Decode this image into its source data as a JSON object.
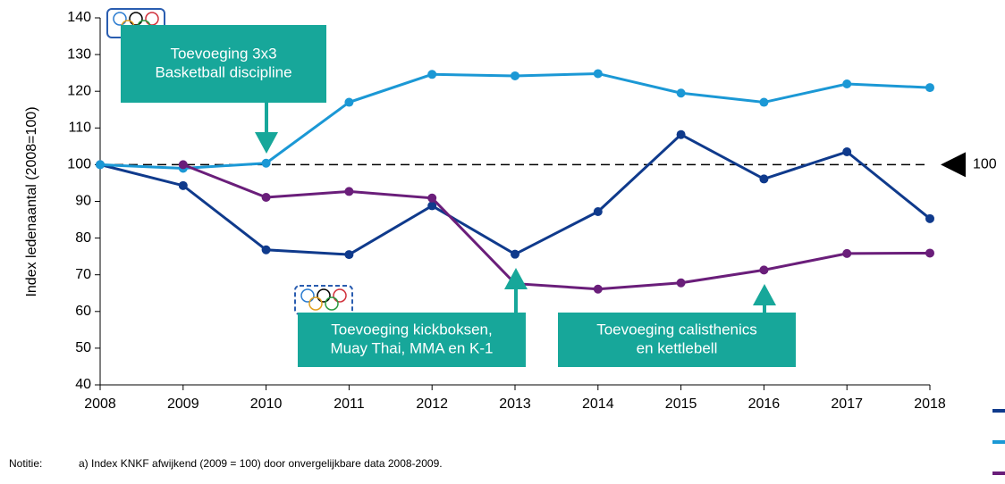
{
  "chart_data": {
    "type": "line",
    "y_axis_label": "Index ledenaantal (2008=100)",
    "categories": [
      "2008",
      "2009",
      "2010",
      "2011",
      "2012",
      "2013",
      "2014",
      "2015",
      "2016",
      "2017",
      "2018"
    ],
    "series": [
      {
        "color": "#0f3a8c",
        "values": [
          100,
          94.3,
          76.8,
          75.5,
          88.8,
          75.6,
          87.2,
          108.2,
          96.1,
          103.5,
          85.3
        ]
      },
      {
        "color": "#1b98d5",
        "values": [
          100,
          99,
          100.4,
          117,
          124.6,
          124.2,
          124.8,
          119.5,
          117,
          122,
          121
        ]
      },
      {
        "color": "#6a1e7a",
        "values": [
          null,
          100,
          91.1,
          92.7,
          90.9,
          67.6,
          66.1,
          67.8,
          71.3,
          75.8,
          75.9
        ]
      }
    ],
    "ylim": [
      40,
      140
    ],
    "yticks": [
      40,
      50,
      60,
      70,
      80,
      90,
      100,
      110,
      120,
      130,
      140
    ],
    "reference_line": {
      "value": 100
    },
    "annotations": [
      {
        "lines": [
          "Toevoeging 3x3",
          "Basketball discipline"
        ]
      },
      {
        "lines": [
          "Toevoeging kickboksen,",
          "Muay Thai, MMA en K-1"
        ]
      },
      {
        "lines": [
          "Toevoeging calisthenics",
          "en kettlebell"
        ]
      }
    ],
    "note_label": "Notitie:",
    "note_text": "a) Index KNKF afwijkend (2009 = 100) door onvergelijkbare data 2008-2009."
  }
}
